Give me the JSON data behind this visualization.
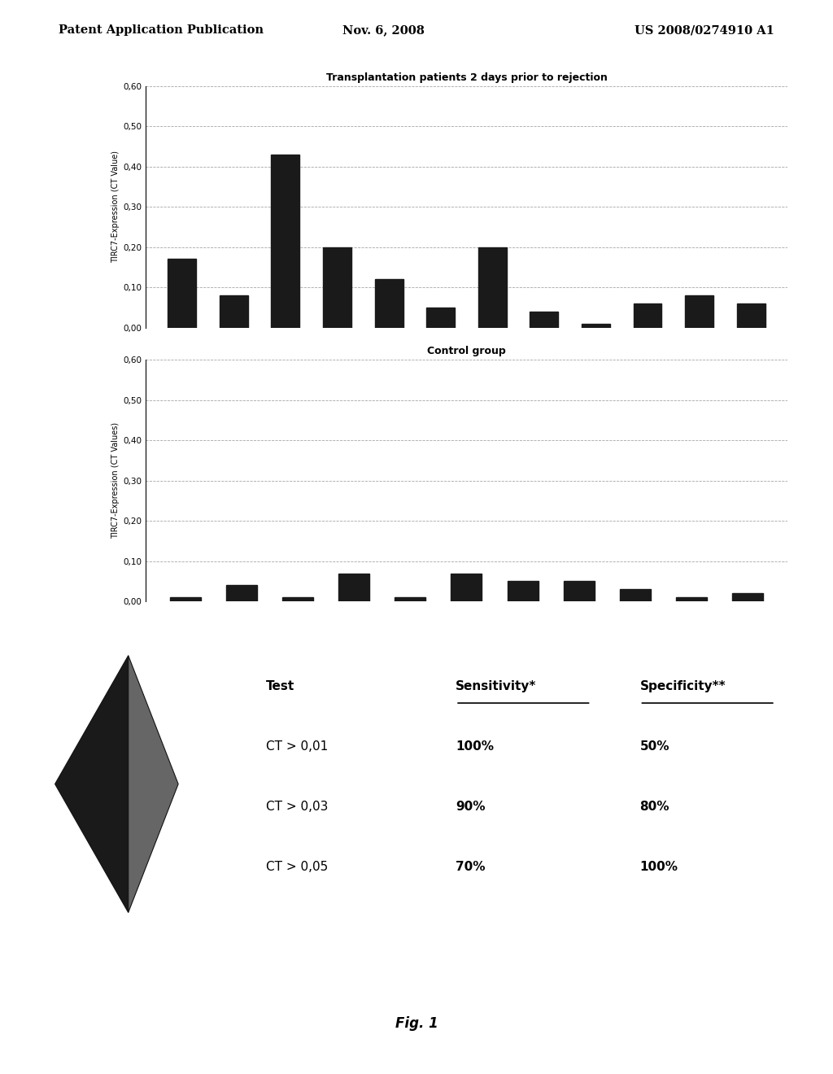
{
  "header_left": "Patent Application Publication",
  "header_center": "Nov. 6, 2008",
  "header_right": "US 2008/0274910 A1",
  "chart1_title": "Transplantation patients 2 days prior to rejection",
  "chart1_ylabel": "TIRC7-Expression (CT Value)",
  "chart1_values": [
    0.17,
    0.08,
    0.43,
    0.2,
    0.12,
    0.05,
    0.2,
    0.04,
    0.01,
    0.06,
    0.08,
    0.06
  ],
  "chart1_ylim": [
    0.0,
    0.6
  ],
  "chart1_yticks": [
    0.0,
    0.1,
    0.2,
    0.3,
    0.4,
    0.5,
    0.6
  ],
  "chart1_yticklabels": [
    "0,00",
    "0,10",
    "0,20",
    "0,30",
    "0,40",
    "0,50",
    "0,60"
  ],
  "chart2_title": "Control group",
  "chart2_ylabel": "TIRC7-Expression (CT Values)",
  "chart2_values": [
    0.01,
    0.04,
    0.01,
    0.07,
    0.01,
    0.07,
    0.05,
    0.05,
    0.03,
    0.01,
    0.02
  ],
  "chart2_ylim": [
    0.0,
    0.6
  ],
  "chart2_yticks": [
    0.0,
    0.1,
    0.2,
    0.3,
    0.4,
    0.5,
    0.6
  ],
  "chart2_yticklabels": [
    "0,00",
    "0,10",
    "0,20",
    "0,30",
    "0,40",
    "0,50",
    "0,60"
  ],
  "table_headers": [
    "Test",
    "Sensitivity*",
    "Specificity**"
  ],
  "table_rows": [
    [
      "CT > 0,01",
      "100%",
      "50%"
    ],
    [
      "CT > 0,03",
      "90%",
      "80%"
    ],
    [
      "CT > 0,05",
      "70%",
      "100%"
    ]
  ],
  "fig_caption": "Fig. 1",
  "bar_color": "#1a1a1a",
  "bg_color": "#ffffff",
  "grid_color": "#888888"
}
